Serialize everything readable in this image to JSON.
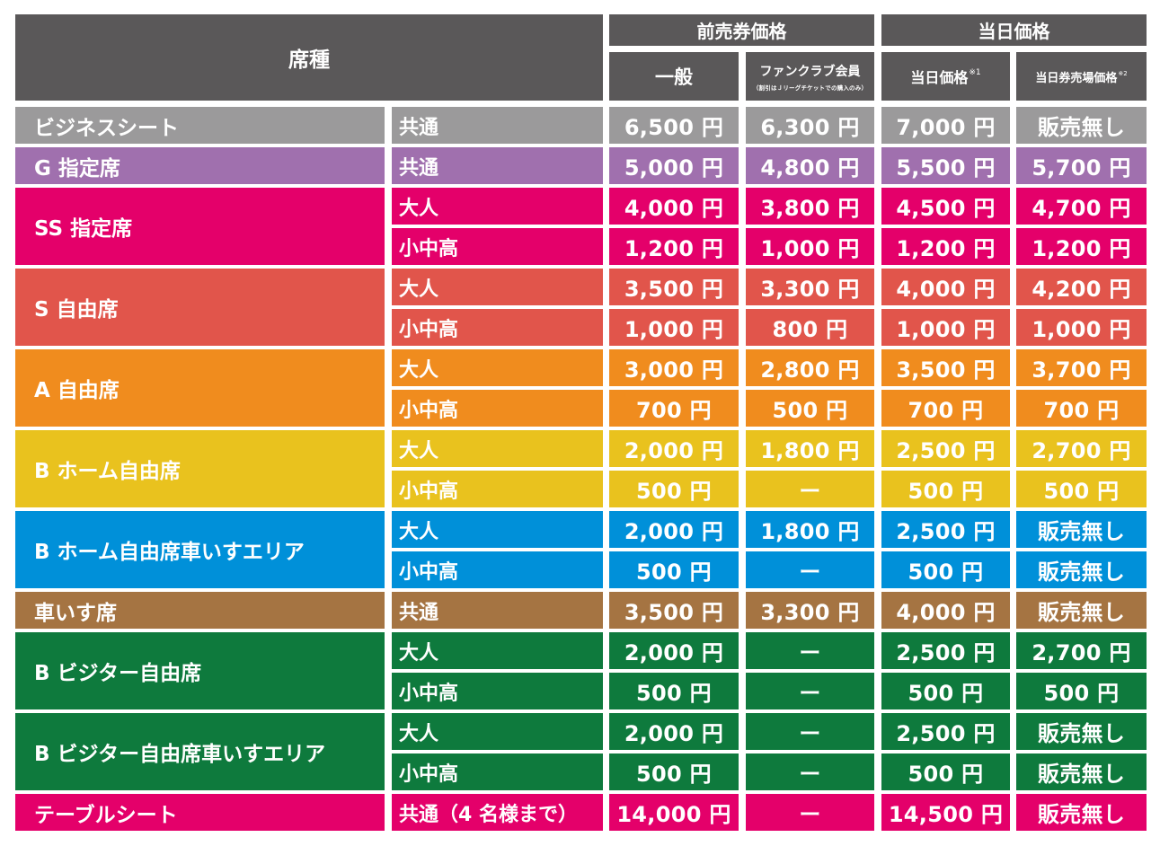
{
  "header": {
    "seat_type": "席種",
    "advance_group": "前売券価格",
    "dayof_group": "当日価格",
    "advance_general": "一般",
    "advance_fanclub": "ファンクラブ会員",
    "advance_fanclub_note": "（割引はＪリーグチケットでの購入のみ）",
    "dayof_price": "当日価格",
    "dayof_price_note": "※1",
    "dayof_counter_price": "当日券売場価格",
    "dayof_counter_price_note": "※2"
  },
  "colors": {
    "header": "#5a5859",
    "business": "#9b9a9b",
    "g_reserved": "#a070ae",
    "ss_reserved": "#e4006a",
    "s_free": "#e1554b",
    "a_free": "#f08c1e",
    "b_home": "#e9c21e",
    "b_home_wheelchair": "#0090d9",
    "wheelchair": "#a57442",
    "b_visitor": "#0e7a3d",
    "table_seat": "#e4006a"
  },
  "categories": [
    {
      "label": "ビジネスシート",
      "color": "#9b9a9b",
      "rows": [
        {
          "sub": "共通",
          "prices": [
            "6,500 円",
            "6,300 円",
            "7,000 円",
            "販売無し"
          ]
        }
      ]
    },
    {
      "label": "G 指定席",
      "color": "#a070ae",
      "rows": [
        {
          "sub": "共通",
          "prices": [
            "5,000 円",
            "4,800 円",
            "5,500 円",
            "5,700 円"
          ]
        }
      ]
    },
    {
      "label": "SS 指定席",
      "color": "#e4006a",
      "rows": [
        {
          "sub": "大人",
          "prices": [
            "4,000 円",
            "3,800 円",
            "4,500 円",
            "4,700 円"
          ]
        },
        {
          "sub": "小中高",
          "prices": [
            "1,200 円",
            "1,000 円",
            "1,200 円",
            "1,200 円"
          ]
        }
      ]
    },
    {
      "label": "S 自由席",
      "color": "#e1554b",
      "rows": [
        {
          "sub": "大人",
          "prices": [
            "3,500 円",
            "3,300 円",
            "4,000 円",
            "4,200 円"
          ]
        },
        {
          "sub": "小中高",
          "prices": [
            "1,000 円",
            "800 円",
            "1,000 円",
            "1,000 円"
          ]
        }
      ]
    },
    {
      "label": "A 自由席",
      "color": "#f08c1e",
      "rows": [
        {
          "sub": "大人",
          "prices": [
            "3,000 円",
            "2,800 円",
            "3,500 円",
            "3,700 円"
          ]
        },
        {
          "sub": "小中高",
          "prices": [
            "700 円",
            "500 円",
            "700 円",
            "700 円"
          ]
        }
      ]
    },
    {
      "label": "B ホーム自由席",
      "color": "#e9c21e",
      "rows": [
        {
          "sub": "大人",
          "prices": [
            "2,000 円",
            "1,800 円",
            "2,500 円",
            "2,700 円"
          ]
        },
        {
          "sub": "小中高",
          "prices": [
            "500 円",
            "ー",
            "500 円",
            "500 円"
          ]
        }
      ]
    },
    {
      "label": "B ホーム自由席車いすエリア",
      "color": "#0090d9",
      "rows": [
        {
          "sub": "大人",
          "prices": [
            "2,000 円",
            "1,800 円",
            "2,500 円",
            "販売無し"
          ]
        },
        {
          "sub": "小中高",
          "prices": [
            "500 円",
            "ー",
            "500 円",
            "販売無し"
          ]
        }
      ]
    },
    {
      "label": "車いす席",
      "color": "#a57442",
      "rows": [
        {
          "sub": "共通",
          "prices": [
            "3,500 円",
            "3,300 円",
            "4,000 円",
            "販売無し"
          ]
        }
      ]
    },
    {
      "label": "B ビジター自由席",
      "color": "#0e7a3d",
      "rows": [
        {
          "sub": "大人",
          "prices": [
            "2,000 円",
            "ー",
            "2,500 円",
            "2,700 円"
          ]
        },
        {
          "sub": "小中高",
          "prices": [
            "500 円",
            "ー",
            "500 円",
            "500 円"
          ]
        }
      ]
    },
    {
      "label": "B ビジター自由席車いすエリア",
      "color": "#0e7a3d",
      "rows": [
        {
          "sub": "大人",
          "prices": [
            "2,000 円",
            "ー",
            "2,500 円",
            "販売無し"
          ]
        },
        {
          "sub": "小中高",
          "prices": [
            "500 円",
            "ー",
            "500 円",
            "販売無し"
          ]
        }
      ]
    },
    {
      "label": "テーブルシート",
      "color": "#e4006a",
      "rows": [
        {
          "sub": "共通（4 名様まで）",
          "prices": [
            "14,000 円",
            "ー",
            "14,500 円",
            "販売無し"
          ]
        }
      ]
    }
  ]
}
